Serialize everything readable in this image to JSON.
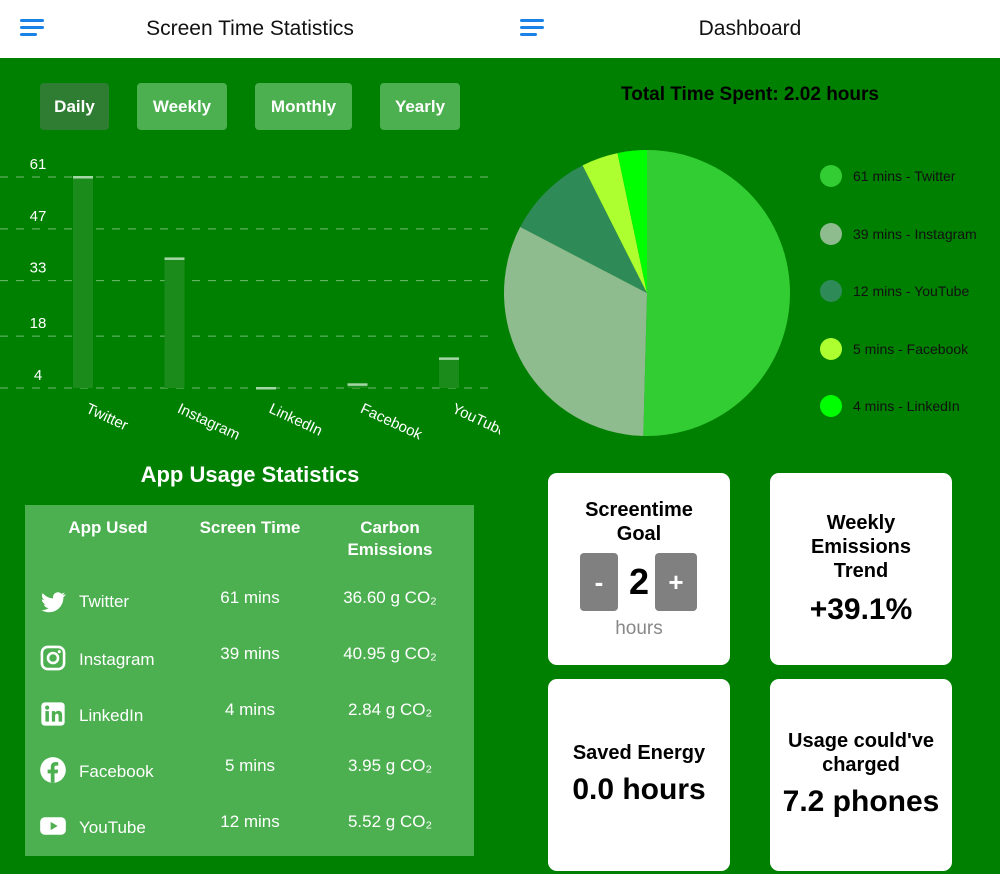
{
  "left": {
    "header": {
      "title": "Screen Time Statistics"
    },
    "ranges": [
      "Daily",
      "Weekly",
      "Monthly",
      "Yearly"
    ],
    "active_range": "Daily",
    "chart_data": {
      "type": "bar",
      "categories": [
        "Twitter",
        "Instagram",
        "LinkedIn",
        "Facebook",
        "YouTube"
      ],
      "values": [
        61,
        39,
        4,
        5,
        12
      ],
      "y_ticks": [
        4,
        18,
        33,
        47,
        61
      ],
      "ylim": [
        4,
        61
      ],
      "grid": true,
      "bar_color": "#1b8c1b",
      "cap_color": "#a5d6a7"
    },
    "table": {
      "title": "App Usage Statistics",
      "headers": [
        "App Used",
        "Screen Time",
        "Carbon Emissions"
      ],
      "rows": [
        {
          "app": "Twitter",
          "icon": "twitter-icon",
          "time": "61 mins",
          "emissions": "36.60 g CO₂"
        },
        {
          "app": "Instagram",
          "icon": "instagram-icon",
          "time": "39 mins",
          "emissions": "40.95 g CO₂"
        },
        {
          "app": "LinkedIn",
          "icon": "linkedin-icon",
          "time": "4 mins",
          "emissions": "2.84 g CO₂"
        },
        {
          "app": "Facebook",
          "icon": "facebook-icon",
          "time": "5 mins",
          "emissions": "3.95 g CO₂"
        },
        {
          "app": "YouTube",
          "icon": "youtube-icon",
          "time": "12 mins",
          "emissions": "5.52 g CO₂"
        }
      ]
    }
  },
  "right": {
    "header": {
      "title": "Dashboard"
    },
    "total": "Total Time Spent: 2.02 hours",
    "pie": {
      "type": "pie",
      "slices": [
        {
          "label": "61 mins - Twitter",
          "value": 61,
          "color": "#32cd32"
        },
        {
          "label": "39 mins - Instagram",
          "value": 39,
          "color": "#8fbc8f"
        },
        {
          "label": "12 mins - YouTube",
          "value": 12,
          "color": "#2e8b57"
        },
        {
          "label": "5 mins - Facebook",
          "value": 5,
          "color": "#adff2f"
        },
        {
          "label": "4 mins - LinkedIn",
          "value": 4,
          "color": "#00ff00"
        }
      ]
    },
    "cards": {
      "goal": {
        "title": "Screentime Goal",
        "minus": "-",
        "value": "2",
        "plus": "+",
        "unit": "hours"
      },
      "trend": {
        "title": "Weekly Emissions Trend",
        "value": "+39.1%"
      },
      "energy": {
        "title": "Saved Energy",
        "value": "0.0 hours"
      },
      "phones": {
        "title": "Usage could've charged",
        "value": "7.2 phones"
      }
    }
  },
  "colors": {
    "background": "#008000",
    "header": "#ffffff",
    "accent": "#1a82e6",
    "button": "#4caf50",
    "button_active": "#2e7d32"
  }
}
